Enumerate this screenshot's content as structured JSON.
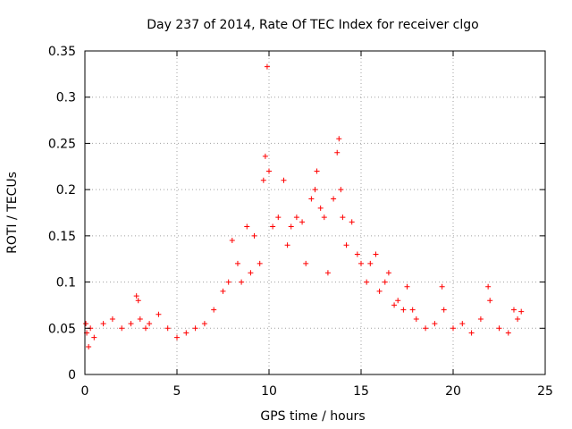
{
  "chart_data": {
    "type": "scatter",
    "title": "Day 237 of 2014, Rate Of TEC Index for receiver clgo",
    "xlabel": "GPS time / hours",
    "ylabel": "ROTI / TECUs",
    "xlim": [
      0,
      25
    ],
    "ylim": [
      0,
      0.35
    ],
    "xticks": [
      0,
      5,
      10,
      15,
      20,
      25
    ],
    "xtick_labels": [
      "0",
      "5",
      "10",
      "15",
      "20",
      "25"
    ],
    "yticks": [
      0,
      0.05,
      0.1,
      0.15,
      0.2,
      0.25,
      0.3,
      0.35
    ],
    "ytick_labels": [
      "0",
      "0.05",
      "0.1",
      "0.15",
      "0.2",
      "0.25",
      "0.3",
      "0.35"
    ],
    "grid": true,
    "marker": "+",
    "marker_color": "#ff0000",
    "series": [
      {
        "name": "ROTI",
        "x": [
          0.05,
          0.1,
          0.2,
          0.3,
          0.5,
          1.0,
          1.5,
          2.0,
          2.5,
          2.8,
          2.9,
          3.0,
          3.3,
          3.5,
          4.0,
          4.5,
          5.0,
          5.5,
          6.0,
          6.5,
          7.0,
          7.5,
          7.8,
          8.0,
          8.3,
          8.5,
          8.8,
          9.0,
          9.2,
          9.5,
          9.7,
          9.8,
          9.9,
          10.0,
          10.2,
          10.5,
          10.8,
          11.0,
          11.2,
          11.5,
          11.8,
          12.0,
          12.3,
          12.5,
          12.6,
          12.8,
          13.0,
          13.2,
          13.5,
          13.7,
          13.8,
          13.9,
          14.0,
          14.2,
          14.5,
          14.8,
          15.0,
          15.3,
          15.5,
          15.8,
          16.0,
          16.3,
          16.5,
          16.8,
          17.0,
          17.3,
          17.5,
          17.8,
          18.0,
          18.5,
          19.0,
          19.4,
          19.5,
          20.0,
          20.5,
          21.0,
          21.5,
          21.9,
          22.0,
          22.5,
          23.0,
          23.3,
          23.5,
          23.7
        ],
        "y": [
          0.055,
          0.045,
          0.03,
          0.05,
          0.04,
          0.055,
          0.06,
          0.05,
          0.055,
          0.085,
          0.08,
          0.06,
          0.05,
          0.055,
          0.065,
          0.05,
          0.04,
          0.045,
          0.05,
          0.055,
          0.07,
          0.09,
          0.1,
          0.145,
          0.12,
          0.1,
          0.16,
          0.11,
          0.15,
          0.12,
          0.21,
          0.236,
          0.333,
          0.22,
          0.16,
          0.17,
          0.21,
          0.14,
          0.16,
          0.17,
          0.165,
          0.12,
          0.19,
          0.2,
          0.22,
          0.18,
          0.17,
          0.11,
          0.19,
          0.24,
          0.255,
          0.2,
          0.17,
          0.14,
          0.165,
          0.13,
          0.12,
          0.1,
          0.12,
          0.13,
          0.09,
          0.1,
          0.11,
          0.075,
          0.08,
          0.07,
          0.095,
          0.07,
          0.06,
          0.05,
          0.055,
          0.095,
          0.07,
          0.05,
          0.055,
          0.045,
          0.06,
          0.095,
          0.08,
          0.05,
          0.045,
          0.07,
          0.06,
          0.068
        ]
      }
    ]
  }
}
